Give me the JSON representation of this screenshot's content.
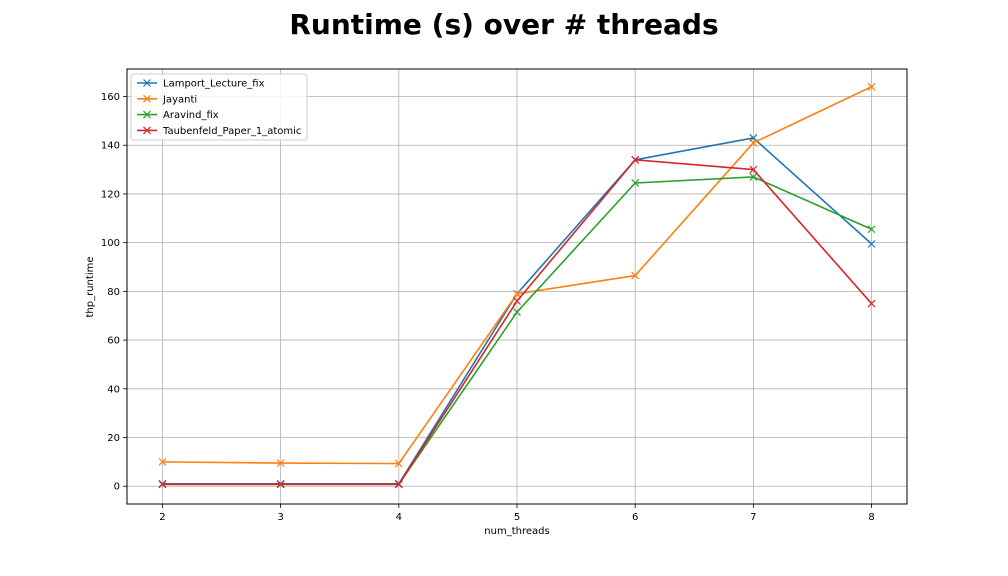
{
  "chart_data": {
    "type": "line",
    "title": "Runtime (s) over # threads",
    "xlabel": "num_threads",
    "ylabel": "thp_runtime",
    "x": [
      2,
      3,
      4,
      5,
      6,
      7,
      8
    ],
    "xlim": [
      1.7,
      8.3
    ],
    "ylim": [
      -7.3,
      171.3
    ],
    "xticks": [
      2,
      3,
      4,
      5,
      6,
      7,
      8
    ],
    "yticks": [
      0,
      20,
      40,
      60,
      80,
      100,
      120,
      140,
      160
    ],
    "grid": true,
    "legend_position": "upper-left",
    "marker": "x",
    "series": [
      {
        "name": "Lamport_Lecture_fix",
        "color": "#1f77b4",
        "values": [
          1,
          1,
          1,
          79,
          134,
          143,
          99.5
        ]
      },
      {
        "name": "Jayanti",
        "color": "#ff7f0e",
        "values": [
          10,
          9.5,
          9.3,
          79,
          86.5,
          141,
          164
        ]
      },
      {
        "name": "Aravind_fix",
        "color": "#2ca02c",
        "values": [
          0.8,
          0.8,
          0.8,
          71.5,
          124.5,
          127,
          105.5
        ]
      },
      {
        "name": "Taubenfeld_Paper_1_atomic",
        "color": "#d62728",
        "values": [
          0.8,
          0.8,
          0.8,
          76,
          134,
          130,
          75
        ]
      }
    ]
  }
}
